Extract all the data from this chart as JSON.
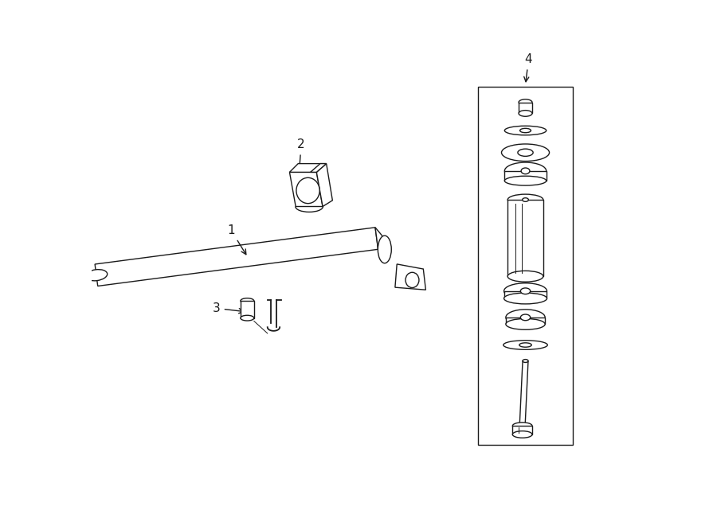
{
  "background_color": "#ffffff",
  "line_color": "#1a1a1a",
  "fig_width": 9.0,
  "fig_height": 6.61,
  "dpi": 100,
  "xlim": [
    0,
    9
  ],
  "ylim": [
    0,
    6.61
  ]
}
